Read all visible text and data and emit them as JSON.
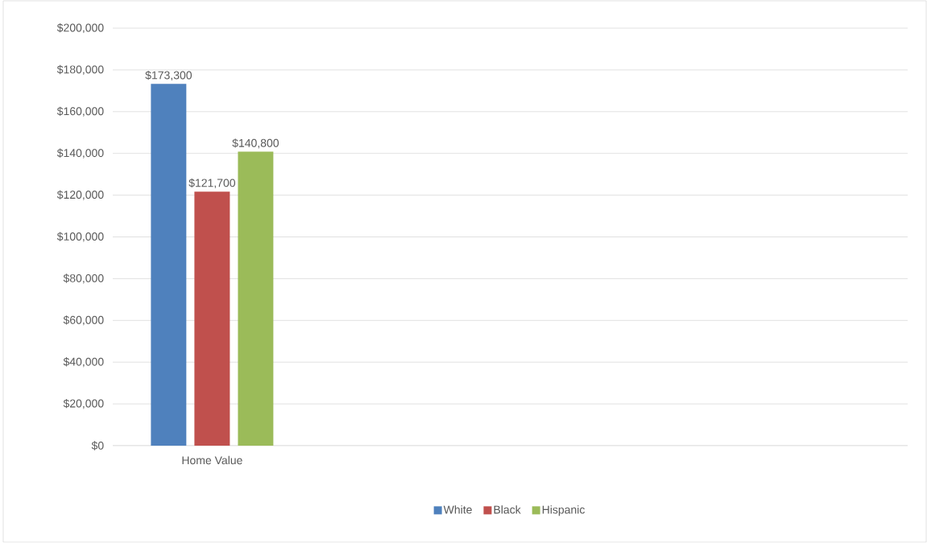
{
  "chart_data": {
    "type": "bar",
    "categories": [
      "Home Value",
      null,
      null,
      null
    ],
    "series": [
      {
        "name": "White",
        "color": "#4f81bd",
        "values": [
          173300,
          null,
          null,
          null
        ],
        "value_labels": [
          "$173,300",
          null,
          null,
          null
        ]
      },
      {
        "name": "Black",
        "color": "#c0504d",
        "values": [
          121700,
          null,
          null,
          null
        ],
        "value_labels": [
          "$121,700",
          null,
          null,
          null
        ]
      },
      {
        "name": "Hispanic",
        "color": "#9bbb59",
        "values": [
          140800,
          null,
          null,
          null
        ],
        "value_labels": [
          "$140,800",
          null,
          null,
          null
        ]
      }
    ],
    "ylim": [
      0,
      200000
    ],
    "yticks": [
      {
        "value": 0,
        "label": "$0"
      },
      {
        "value": 20000,
        "label": "$20,000"
      },
      {
        "value": 40000,
        "label": "$40,000"
      },
      {
        "value": 60000,
        "label": "$60,000"
      },
      {
        "value": 80000,
        "label": "$80,000"
      },
      {
        "value": 100000,
        "label": "$100,000"
      },
      {
        "value": 120000,
        "label": "$120,000"
      },
      {
        "value": 140000,
        "label": "$140,000"
      },
      {
        "value": 160000,
        "label": "$160,000"
      },
      {
        "value": 180000,
        "label": "$180,000"
      },
      {
        "value": 200000,
        "label": "$200,000"
      }
    ],
    "grid": "y",
    "legend": "bottom"
  }
}
